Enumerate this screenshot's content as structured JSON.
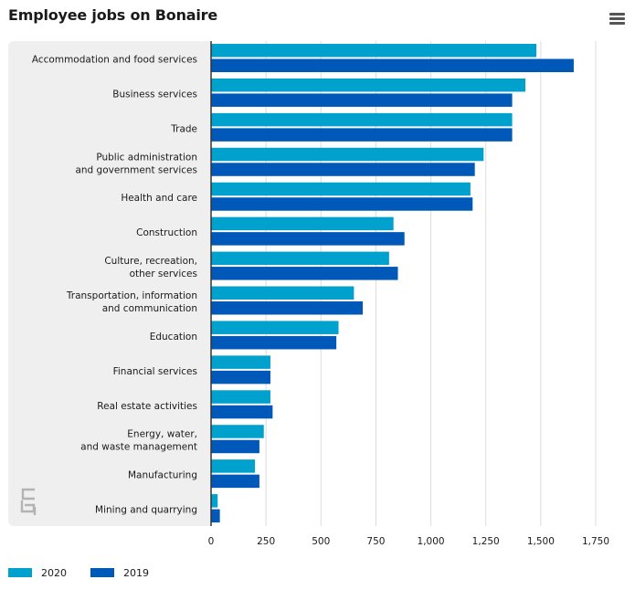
{
  "title": "Employee jobs on Bonaire",
  "icons": {
    "menu": "hamburger-menu-icon",
    "logo": "cbs-logo-icon"
  },
  "colors": {
    "series_2020": "#00a1cd",
    "series_2019": "#0058b8",
    "panel": "#efefef",
    "grid": "#dcdcdc",
    "axis": "#333333"
  },
  "chart_data": {
    "type": "bar",
    "orientation": "horizontal",
    "title": "Employee jobs on Bonaire",
    "categories": [
      [
        "Accommodation and food services"
      ],
      [
        "Business services"
      ],
      [
        "Trade"
      ],
      [
        "Public administration",
        "and government services"
      ],
      [
        "Health and care"
      ],
      [
        "Construction"
      ],
      [
        "Culture, recreation,",
        "other services"
      ],
      [
        "Transportation, information",
        "and communication"
      ],
      [
        "Education"
      ],
      [
        "Financial services"
      ],
      [
        "Real estate activities"
      ],
      [
        "Energy, water,",
        "and waste management"
      ],
      [
        "Manufacturing"
      ],
      [
        "Mining and quarrying"
      ]
    ],
    "series": [
      {
        "name": "2020",
        "color": "#00a1cd",
        "values": [
          1480,
          1430,
          1370,
          1240,
          1180,
          830,
          810,
          650,
          580,
          270,
          270,
          240,
          200,
          30
        ]
      },
      {
        "name": "2019",
        "color": "#0058b8",
        "values": [
          1650,
          1370,
          1370,
          1200,
          1190,
          880,
          850,
          690,
          570,
          270,
          280,
          220,
          220,
          40
        ]
      }
    ],
    "xlim": [
      0,
      1750
    ],
    "xticks": [
      0,
      250,
      500,
      750,
      1000,
      1250,
      1500,
      1750
    ],
    "xtick_labels": [
      "0",
      "250",
      "500",
      "750",
      "1,000",
      "1,250",
      "1,500",
      "1,750"
    ],
    "grid": true,
    "legend_position": "bottom-left"
  },
  "legend": [
    {
      "label": "2020",
      "color": "#00a1cd"
    },
    {
      "label": "2019",
      "color": "#0058b8"
    }
  ]
}
